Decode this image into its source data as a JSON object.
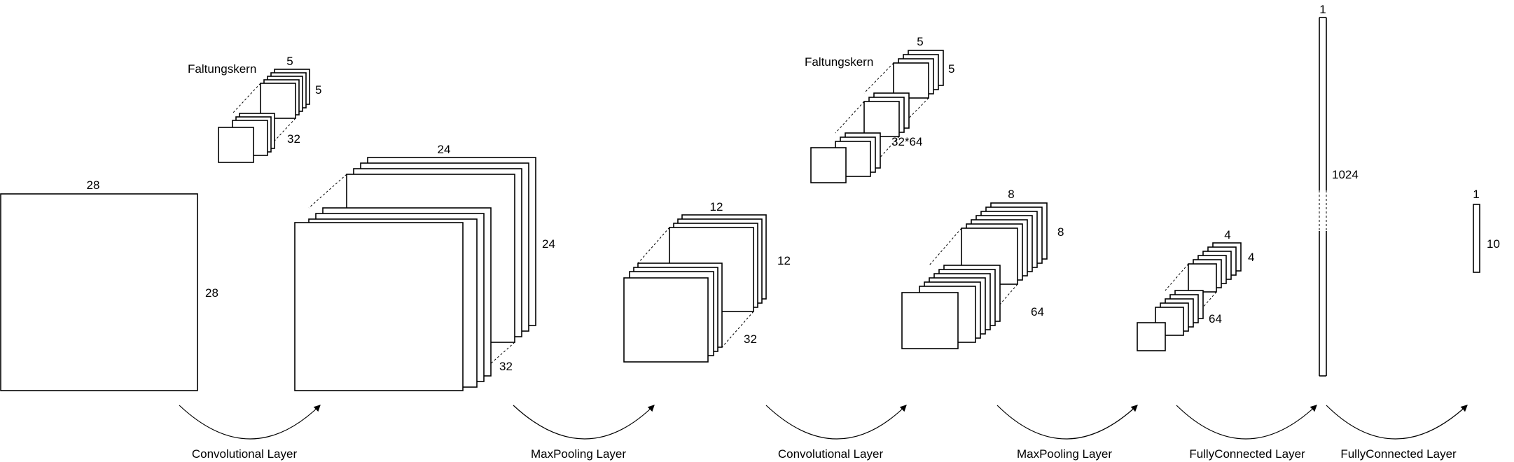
{
  "kernel1": {
    "label": "Faltungskern",
    "width": "5",
    "height": "5",
    "depth": "32"
  },
  "input": {
    "width": "28",
    "height": "28"
  },
  "conv1_out": {
    "width": "24",
    "height": "24",
    "depth": "32"
  },
  "pool1_out": {
    "width": "12",
    "height": "12",
    "depth": "32"
  },
  "kernel2": {
    "label": "Faltungskern",
    "width": "5",
    "height": "5",
    "depth": "32*64"
  },
  "pool2_out": {
    "width": "8",
    "height": "8",
    "depth": "64"
  },
  "fc_in": {
    "width": "4",
    "height": "4",
    "depth": "64"
  },
  "fc1_out": {
    "width": "1",
    "height": "1024"
  },
  "fc2_out": {
    "width": "1",
    "height": "10"
  },
  "operations": [
    "Convolutional Layer",
    "MaxPooling Layer",
    "Convolutional Layer",
    "MaxPooling Layer",
    "FullyConnected Layer",
    "FullyConnected Layer"
  ]
}
